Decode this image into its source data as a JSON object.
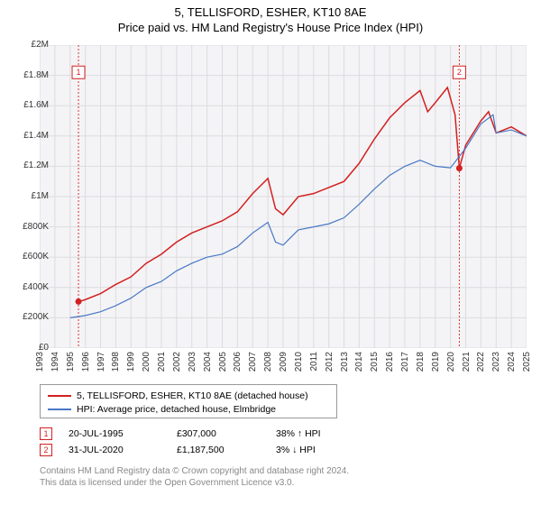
{
  "title_line1": "5, TELLISFORD, ESHER, KT10 8AE",
  "title_line2": "Price paid vs. HM Land Registry's House Price Index (HPI)",
  "chart": {
    "type": "line",
    "background_color": "#f4f4f6",
    "border_color": "#bbbbbb",
    "grid_color": "#dcdce0",
    "ylim": [
      0,
      2000000
    ],
    "ytick_step": 200000,
    "ytick_labels": [
      "£0",
      "£200K",
      "£400K",
      "£600K",
      "£800K",
      "£1M",
      "£1.2M",
      "£1.4M",
      "£1.6M",
      "£1.8M",
      "£2M"
    ],
    "x_start_year": 1993,
    "x_end_year": 2025,
    "xtick_labels": [
      "1993",
      "1994",
      "1995",
      "1996",
      "1997",
      "1998",
      "1999",
      "2000",
      "2001",
      "2002",
      "2003",
      "2004",
      "2005",
      "2006",
      "2007",
      "2008",
      "2009",
      "2010",
      "2011",
      "2012",
      "2013",
      "2014",
      "2015",
      "2016",
      "2017",
      "2018",
      "2019",
      "2020",
      "2021",
      "2022",
      "2023",
      "2024",
      "2025"
    ],
    "marker_line_color": "#d93232",
    "marker_line_dash": "2,2",
    "series": [
      {
        "name": "5, TELLISFORD, ESHER, KT10 8AE (detached house)",
        "color": "#d32020",
        "line_width": 1.5,
        "points": [
          [
            1995.6,
            307000
          ],
          [
            1996,
            320000
          ],
          [
            1997,
            360000
          ],
          [
            1998,
            420000
          ],
          [
            1999,
            470000
          ],
          [
            2000,
            560000
          ],
          [
            2001,
            620000
          ],
          [
            2002,
            700000
          ],
          [
            2003,
            760000
          ],
          [
            2004,
            800000
          ],
          [
            2005,
            840000
          ],
          [
            2006,
            900000
          ],
          [
            2007,
            1020000
          ],
          [
            2008,
            1120000
          ],
          [
            2008.5,
            920000
          ],
          [
            2009,
            880000
          ],
          [
            2010,
            1000000
          ],
          [
            2011,
            1020000
          ],
          [
            2012,
            1060000
          ],
          [
            2013,
            1100000
          ],
          [
            2014,
            1220000
          ],
          [
            2015,
            1380000
          ],
          [
            2016,
            1520000
          ],
          [
            2017,
            1620000
          ],
          [
            2018,
            1700000
          ],
          [
            2018.5,
            1560000
          ],
          [
            2019,
            1620000
          ],
          [
            2019.8,
            1720000
          ],
          [
            2020.3,
            1540000
          ],
          [
            2020.58,
            1187500
          ],
          [
            2021,
            1340000
          ],
          [
            2022,
            1500000
          ],
          [
            2022.5,
            1560000
          ],
          [
            2023,
            1420000
          ],
          [
            2024,
            1460000
          ],
          [
            2025,
            1400000
          ]
        ]
      },
      {
        "name": "HPI: Average price, detached house, Elmbridge",
        "color": "#4a78c4",
        "line_width": 1.2,
        "points": [
          [
            1995,
            200000
          ],
          [
            1996,
            215000
          ],
          [
            1997,
            240000
          ],
          [
            1998,
            280000
          ],
          [
            1999,
            330000
          ],
          [
            2000,
            400000
          ],
          [
            2001,
            440000
          ],
          [
            2002,
            510000
          ],
          [
            2003,
            560000
          ],
          [
            2004,
            600000
          ],
          [
            2005,
            620000
          ],
          [
            2006,
            670000
          ],
          [
            2007,
            760000
          ],
          [
            2008,
            830000
          ],
          [
            2008.5,
            700000
          ],
          [
            2009,
            680000
          ],
          [
            2010,
            780000
          ],
          [
            2011,
            800000
          ],
          [
            2012,
            820000
          ],
          [
            2013,
            860000
          ],
          [
            2014,
            950000
          ],
          [
            2015,
            1050000
          ],
          [
            2016,
            1140000
          ],
          [
            2017,
            1200000
          ],
          [
            2018,
            1240000
          ],
          [
            2019,
            1200000
          ],
          [
            2020,
            1190000
          ],
          [
            2021,
            1320000
          ],
          [
            2022,
            1480000
          ],
          [
            2022.8,
            1540000
          ],
          [
            2023,
            1420000
          ],
          [
            2024,
            1440000
          ],
          [
            2025,
            1400000
          ]
        ]
      }
    ],
    "markers": [
      {
        "num": "1",
        "date": "20-JUL-1995",
        "price": "£307,000",
        "delta": "38% ↑ HPI",
        "x": 1995.55,
        "y": 307000,
        "label_y": 1820000
      },
      {
        "num": "2",
        "date": "31-JUL-2020",
        "price": "£1,187,500",
        "delta": "3% ↓ HPI",
        "x": 2020.58,
        "y": 1187500,
        "label_y": 1820000
      }
    ],
    "marker_dot_color": "#d32020",
    "marker_box_border": "#d32020",
    "marker_box_text": "#d32020"
  },
  "legend": {
    "items": [
      {
        "color": "#d32020",
        "text": "5, TELLISFORD, ESHER, KT10 8AE (detached house)"
      },
      {
        "color": "#4a78c4",
        "text": "HPI: Average price, detached house, Elmbridge"
      }
    ]
  },
  "footer_line1": "Contains HM Land Registry data © Crown copyright and database right 2024.",
  "footer_line2": "This data is licensed under the Open Government Licence v3.0."
}
